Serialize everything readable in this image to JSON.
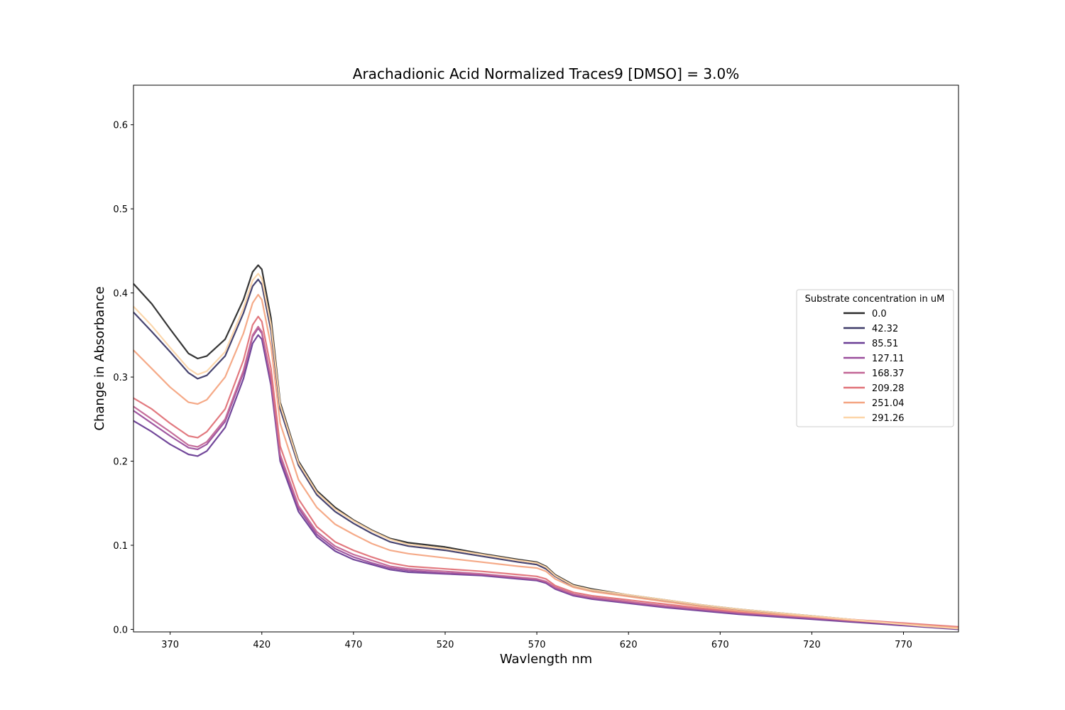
{
  "chart_data": {
    "type": "line",
    "title": "Arachadionic Acid Normalized Traces9 [DMSO] = 3.0%",
    "xlabel": "Wavlength nm",
    "ylabel": "Change in Absorbance",
    "xlim": [
      350,
      800
    ],
    "ylim": [
      -0.003,
      0.647
    ],
    "xticks": [
      370,
      420,
      470,
      520,
      570,
      620,
      670,
      720,
      770
    ],
    "xtick_labels": [
      "370",
      "420",
      "470",
      "520",
      "570",
      "620",
      "670",
      "720",
      "770"
    ],
    "yticks": [
      0.0,
      0.1,
      0.2,
      0.3,
      0.4,
      0.5,
      0.6
    ],
    "ytick_labels": [
      "0.0",
      "0.1",
      "0.2",
      "0.3",
      "0.4",
      "0.5",
      "0.6"
    ],
    "grid": false,
    "legend": {
      "title": "Substrate concentration in uM",
      "placement": "center-right"
    },
    "x": [
      350,
      360,
      370,
      380,
      385,
      390,
      400,
      410,
      415,
      418,
      420,
      425,
      430,
      440,
      450,
      460,
      470,
      480,
      490,
      500,
      520,
      540,
      560,
      570,
      575,
      580,
      590,
      600,
      620,
      640,
      660,
      680,
      700,
      720,
      740,
      760,
      780,
      800
    ],
    "series": [
      {
        "name": "0.0",
        "color": "#2b2b2b",
        "values": [
          0.411,
          0.387,
          0.357,
          0.328,
          0.322,
          0.325,
          0.345,
          0.392,
          0.425,
          0.433,
          0.428,
          0.37,
          0.27,
          0.2,
          0.165,
          0.145,
          0.13,
          0.118,
          0.108,
          0.103,
          0.098,
          0.09,
          0.083,
          0.08,
          0.075,
          0.065,
          0.053,
          0.048,
          0.041,
          0.035,
          0.029,
          0.024,
          0.02,
          0.016,
          0.012,
          0.008,
          0.004,
          0.001
        ]
      },
      {
        "name": "42.32",
        "color": "#3d3a68",
        "values": [
          0.377,
          0.354,
          0.33,
          0.305,
          0.298,
          0.302,
          0.325,
          0.376,
          0.408,
          0.416,
          0.41,
          0.355,
          0.262,
          0.195,
          0.16,
          0.14,
          0.126,
          0.114,
          0.104,
          0.099,
          0.094,
          0.087,
          0.08,
          0.077,
          0.072,
          0.063,
          0.051,
          0.046,
          0.04,
          0.034,
          0.028,
          0.023,
          0.019,
          0.015,
          0.011,
          0.007,
          0.004,
          0.001
        ]
      },
      {
        "name": "85.51",
        "color": "#6a3d95",
        "values": [
          0.248,
          0.235,
          0.22,
          0.208,
          0.206,
          0.212,
          0.24,
          0.298,
          0.34,
          0.35,
          0.345,
          0.29,
          0.2,
          0.14,
          0.11,
          0.093,
          0.083,
          0.077,
          0.071,
          0.068,
          0.066,
          0.064,
          0.06,
          0.058,
          0.055,
          0.048,
          0.04,
          0.036,
          0.031,
          0.026,
          0.022,
          0.018,
          0.015,
          0.012,
          0.009,
          0.006,
          0.003,
          0.0
        ]
      },
      {
        "name": "127.11",
        "color": "#9a4e9c",
        "values": [
          0.26,
          0.245,
          0.23,
          0.216,
          0.214,
          0.22,
          0.247,
          0.305,
          0.348,
          0.358,
          0.352,
          0.296,
          0.205,
          0.144,
          0.113,
          0.096,
          0.086,
          0.079,
          0.073,
          0.07,
          0.067,
          0.065,
          0.061,
          0.059,
          0.056,
          0.049,
          0.041,
          0.037,
          0.032,
          0.027,
          0.023,
          0.019,
          0.016,
          0.013,
          0.01,
          0.007,
          0.004,
          0.001
        ]
      },
      {
        "name": "168.37",
        "color": "#c26696",
        "values": [
          0.265,
          0.25,
          0.235,
          0.219,
          0.217,
          0.223,
          0.25,
          0.308,
          0.35,
          0.36,
          0.354,
          0.298,
          0.208,
          0.147,
          0.116,
          0.099,
          0.089,
          0.082,
          0.075,
          0.072,
          0.069,
          0.066,
          0.062,
          0.06,
          0.057,
          0.05,
          0.042,
          0.038,
          0.033,
          0.028,
          0.024,
          0.02,
          0.017,
          0.014,
          0.011,
          0.008,
          0.005,
          0.002
        ]
      },
      {
        "name": "209.28",
        "color": "#e07278",
        "values": [
          0.275,
          0.262,
          0.245,
          0.23,
          0.228,
          0.235,
          0.262,
          0.32,
          0.362,
          0.372,
          0.366,
          0.31,
          0.218,
          0.155,
          0.122,
          0.104,
          0.094,
          0.086,
          0.079,
          0.075,
          0.072,
          0.069,
          0.065,
          0.063,
          0.06,
          0.052,
          0.044,
          0.04,
          0.035,
          0.03,
          0.025,
          0.021,
          0.018,
          0.015,
          0.012,
          0.009,
          0.006,
          0.003
        ]
      },
      {
        "name": "251.04",
        "color": "#f4a582",
        "values": [
          0.332,
          0.31,
          0.288,
          0.27,
          0.268,
          0.273,
          0.3,
          0.352,
          0.388,
          0.398,
          0.392,
          0.337,
          0.245,
          0.178,
          0.145,
          0.125,
          0.113,
          0.102,
          0.094,
          0.09,
          0.085,
          0.08,
          0.075,
          0.073,
          0.069,
          0.06,
          0.05,
          0.045,
          0.039,
          0.033,
          0.027,
          0.022,
          0.018,
          0.015,
          0.011,
          0.008,
          0.005,
          0.002
        ]
      },
      {
        "name": "291.26",
        "color": "#fcd5a8",
        "values": [
          0.384,
          0.361,
          0.335,
          0.31,
          0.303,
          0.307,
          0.33,
          0.382,
          0.415,
          0.423,
          0.417,
          0.362,
          0.267,
          0.198,
          0.163,
          0.143,
          0.129,
          0.117,
          0.107,
          0.101,
          0.096,
          0.089,
          0.082,
          0.079,
          0.074,
          0.064,
          0.052,
          0.047,
          0.041,
          0.035,
          0.029,
          0.024,
          0.02,
          0.016,
          0.012,
          0.008,
          0.004,
          0.001
        ]
      }
    ]
  }
}
